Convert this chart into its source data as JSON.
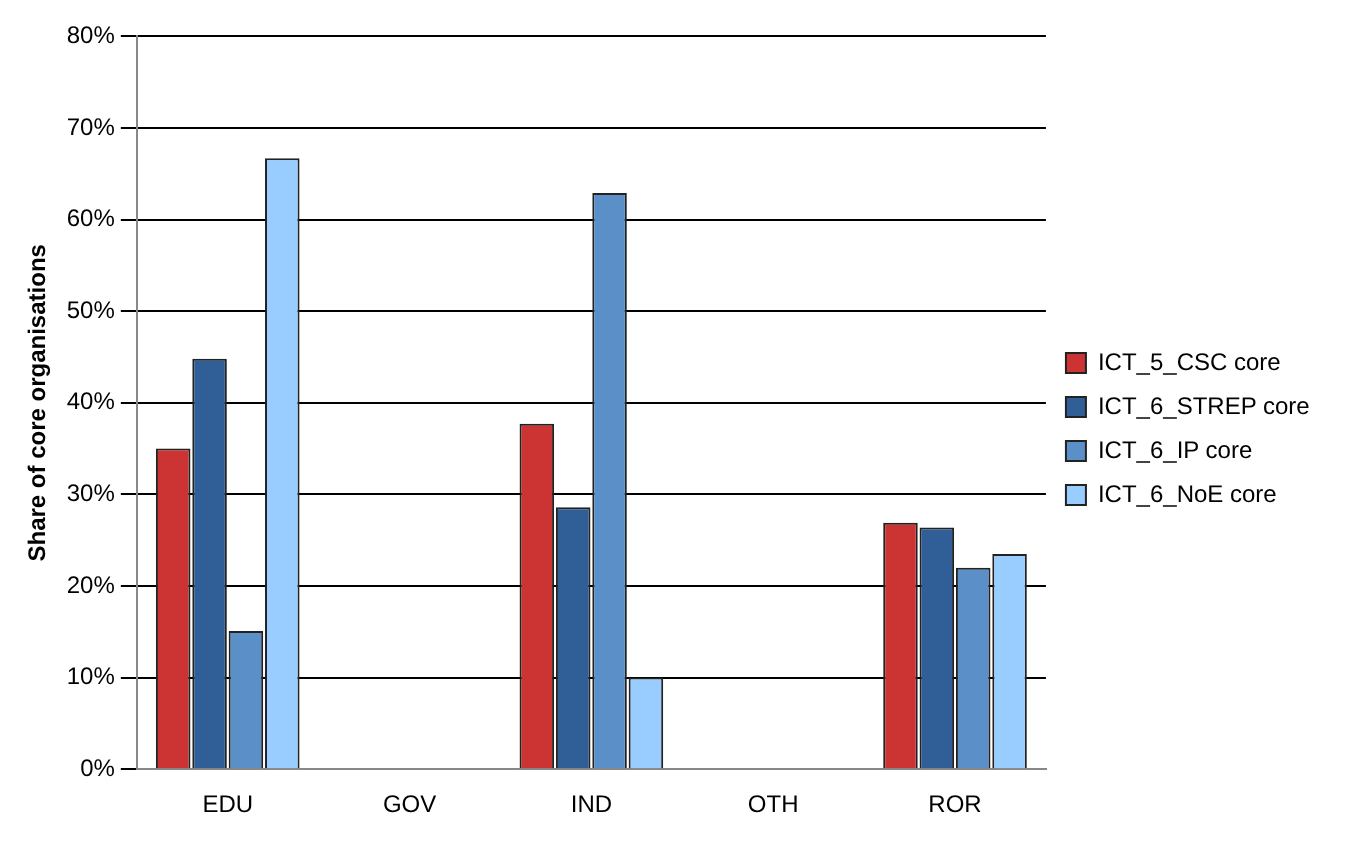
{
  "chart_data": {
    "type": "bar",
    "ylabel": "Share of core organisations",
    "categories": [
      "EDU",
      "GOV",
      "IND",
      "OTH",
      "ROR"
    ],
    "series": [
      {
        "name": "ICT_5_CSC core",
        "color": "#cc3333",
        "values": [
          35,
          0,
          37.7,
          0,
          26.9
        ]
      },
      {
        "name": "ICT_6_STREP core",
        "color": "#2f5f96",
        "values": [
          44.8,
          0,
          28.6,
          0,
          26.4
        ]
      },
      {
        "name": "ICT_6_IP core",
        "color": "#5b8fc8",
        "values": [
          15.1,
          0,
          62.9,
          0,
          22
        ]
      },
      {
        "name": "ICT_6_NoE core",
        "color": "#99ccff",
        "values": [
          66.7,
          0,
          10,
          0,
          23.5
        ]
      }
    ],
    "ylim": [
      0,
      80
    ],
    "yticks": [
      {
        "value": 0,
        "label": "0%"
      },
      {
        "value": 10,
        "label": "10%"
      },
      {
        "value": 20,
        "label": "20%"
      },
      {
        "value": 30,
        "label": "30%"
      },
      {
        "value": 40,
        "label": "40%"
      },
      {
        "value": 50,
        "label": "50%"
      },
      {
        "value": 60,
        "label": "60%"
      },
      {
        "value": 70,
        "label": "70%"
      },
      {
        "value": 80,
        "label": "80%"
      }
    ],
    "grid": "y",
    "legend": "right"
  }
}
